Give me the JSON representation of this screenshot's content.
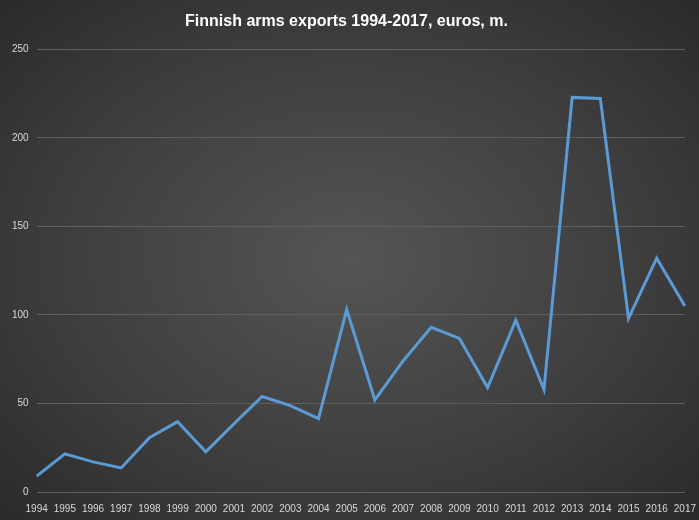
{
  "chart_data": {
    "type": "line",
    "title": "Finnish arms exports 1994-2017, euros, m.",
    "categories": [
      "1994",
      "1995",
      "1996",
      "1997",
      "1998",
      "1999",
      "2000",
      "2001",
      "2002",
      "2003",
      "2004",
      "2005",
      "2006",
      "2007",
      "2008",
      "2009",
      "2010",
      "2011",
      "2012",
      "2013",
      "2014",
      "2015",
      "2016",
      "2017"
    ],
    "values": [
      9,
      21.5,
      17,
      13.6,
      30.6,
      39.7,
      22.7,
      38.5,
      53.9,
      48.8,
      41.4,
      103,
      52,
      74,
      93,
      86.7,
      59,
      97,
      57.8,
      222.8,
      222.2,
      98,
      132,
      105
    ],
    "color": "#5b9bd5",
    "ylim": [
      0,
      250
    ],
    "yticks": [
      0,
      50,
      100,
      150,
      200,
      250
    ],
    "grid": true
  }
}
